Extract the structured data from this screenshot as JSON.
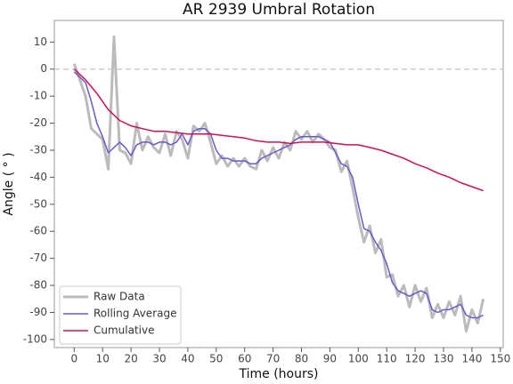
{
  "chart_data": {
    "type": "line",
    "title": "AR 2939 Umbral Rotation",
    "xlabel": "Time (hours)",
    "ylabel": "Angle ( ° )",
    "xlim": [
      -7,
      151
    ],
    "ylim": [
      -103,
      18
    ],
    "xticks": [
      0,
      10,
      20,
      30,
      40,
      50,
      60,
      70,
      80,
      90,
      100,
      110,
      120,
      130,
      140,
      150
    ],
    "yticks": [
      -100,
      -90,
      -80,
      -70,
      -60,
      -50,
      -40,
      -30,
      -20,
      -10,
      0,
      10
    ],
    "hline": 0,
    "legend": "lower left",
    "series": [
      {
        "name": "Raw Data",
        "color": "#bbbbbb",
        "x": [
          0,
          2,
          4,
          6,
          8,
          10,
          12,
          14,
          16,
          18,
          20,
          22,
          24,
          26,
          28,
          30,
          32,
          34,
          36,
          38,
          40,
          42,
          44,
          46,
          48,
          50,
          52,
          54,
          56,
          58,
          60,
          62,
          64,
          66,
          68,
          70,
          72,
          74,
          76,
          78,
          80,
          82,
          84,
          86,
          88,
          90,
          92,
          94,
          96,
          98,
          100,
          102,
          104,
          106,
          108,
          110,
          112,
          114,
          116,
          118,
          120,
          122,
          124,
          126,
          128,
          130,
          132,
          134,
          136,
          138,
          140,
          142,
          144
        ],
        "values": [
          2,
          -4,
          -10,
          -22,
          -24,
          -26,
          -37,
          12,
          -30,
          -31,
          -35,
          -20,
          -30,
          -25,
          -29,
          -31,
          -24,
          -32,
          -23,
          -26,
          -33,
          -21,
          -23,
          -20,
          -27,
          -35,
          -32,
          -36,
          -33,
          -36,
          -33,
          -36,
          -37,
          -30,
          -34,
          -29,
          -33,
          -27,
          -30,
          -23,
          -26,
          -23,
          -27,
          -24,
          -26,
          -29,
          -30,
          -38,
          -34,
          -44,
          -55,
          -64,
          -58,
          -68,
          -63,
          -77,
          -76,
          -84,
          -80,
          -88,
          -80,
          -86,
          -81,
          -92,
          -87,
          -92,
          -86,
          -91,
          -84,
          -97,
          -89,
          -94,
          -85
        ]
      },
      {
        "name": "Rolling Average",
        "color": "#6a5acd",
        "x": [
          0,
          2,
          4,
          6,
          8,
          10,
          12,
          14,
          16,
          18,
          20,
          22,
          24,
          26,
          28,
          30,
          32,
          34,
          36,
          38,
          40,
          42,
          44,
          46,
          48,
          50,
          52,
          54,
          56,
          58,
          60,
          62,
          64,
          66,
          68,
          70,
          72,
          74,
          76,
          78,
          80,
          82,
          84,
          86,
          88,
          90,
          92,
          94,
          96,
          98,
          100,
          102,
          104,
          106,
          108,
          110,
          112,
          114,
          116,
          118,
          120,
          122,
          124,
          126,
          128,
          130,
          132,
          134,
          136,
          138,
          140,
          142,
          144
        ],
        "values": [
          -1,
          -3,
          -5,
          -12,
          -20,
          -25,
          -31,
          -29,
          -27,
          -29,
          -32,
          -28,
          -27,
          -27,
          -28,
          -27,
          -27,
          -28,
          -27,
          -24,
          -28,
          -23,
          -22,
          -22,
          -24,
          -30,
          -33,
          -33,
          -34,
          -34,
          -34,
          -35,
          -35,
          -33,
          -32,
          -31,
          -30,
          -29,
          -28,
          -26,
          -25,
          -25,
          -25,
          -25,
          -26,
          -27,
          -31,
          -35,
          -36,
          -40,
          -50,
          -59,
          -60,
          -64,
          -67,
          -72,
          -79,
          -82,
          -83,
          -84,
          -83,
          -82,
          -83,
          -89,
          -90,
          -89,
          -89,
          -88,
          -87,
          -91,
          -92,
          -92,
          -91
        ]
      },
      {
        "name": "Cumulative",
        "color": "#d0104c",
        "x": [
          0,
          4,
          8,
          12,
          16,
          20,
          24,
          28,
          32,
          36,
          40,
          44,
          48,
          52,
          56,
          60,
          64,
          68,
          72,
          76,
          80,
          84,
          88,
          92,
          96,
          100,
          104,
          108,
          112,
          116,
          120,
          124,
          128,
          132,
          136,
          140,
          144
        ],
        "values": [
          0,
          -4,
          -9,
          -15,
          -19,
          -21,
          -22,
          -23,
          -23,
          -23.5,
          -24,
          -24,
          -24,
          -24.5,
          -25,
          -25.5,
          -26.5,
          -27,
          -27,
          -27.5,
          -27,
          -27,
          -27,
          -27.5,
          -28,
          -28,
          -29,
          -30,
          -31.5,
          -33,
          -35,
          -36.5,
          -38.5,
          -40,
          -42,
          -43.5,
          -45
        ]
      }
    ]
  }
}
